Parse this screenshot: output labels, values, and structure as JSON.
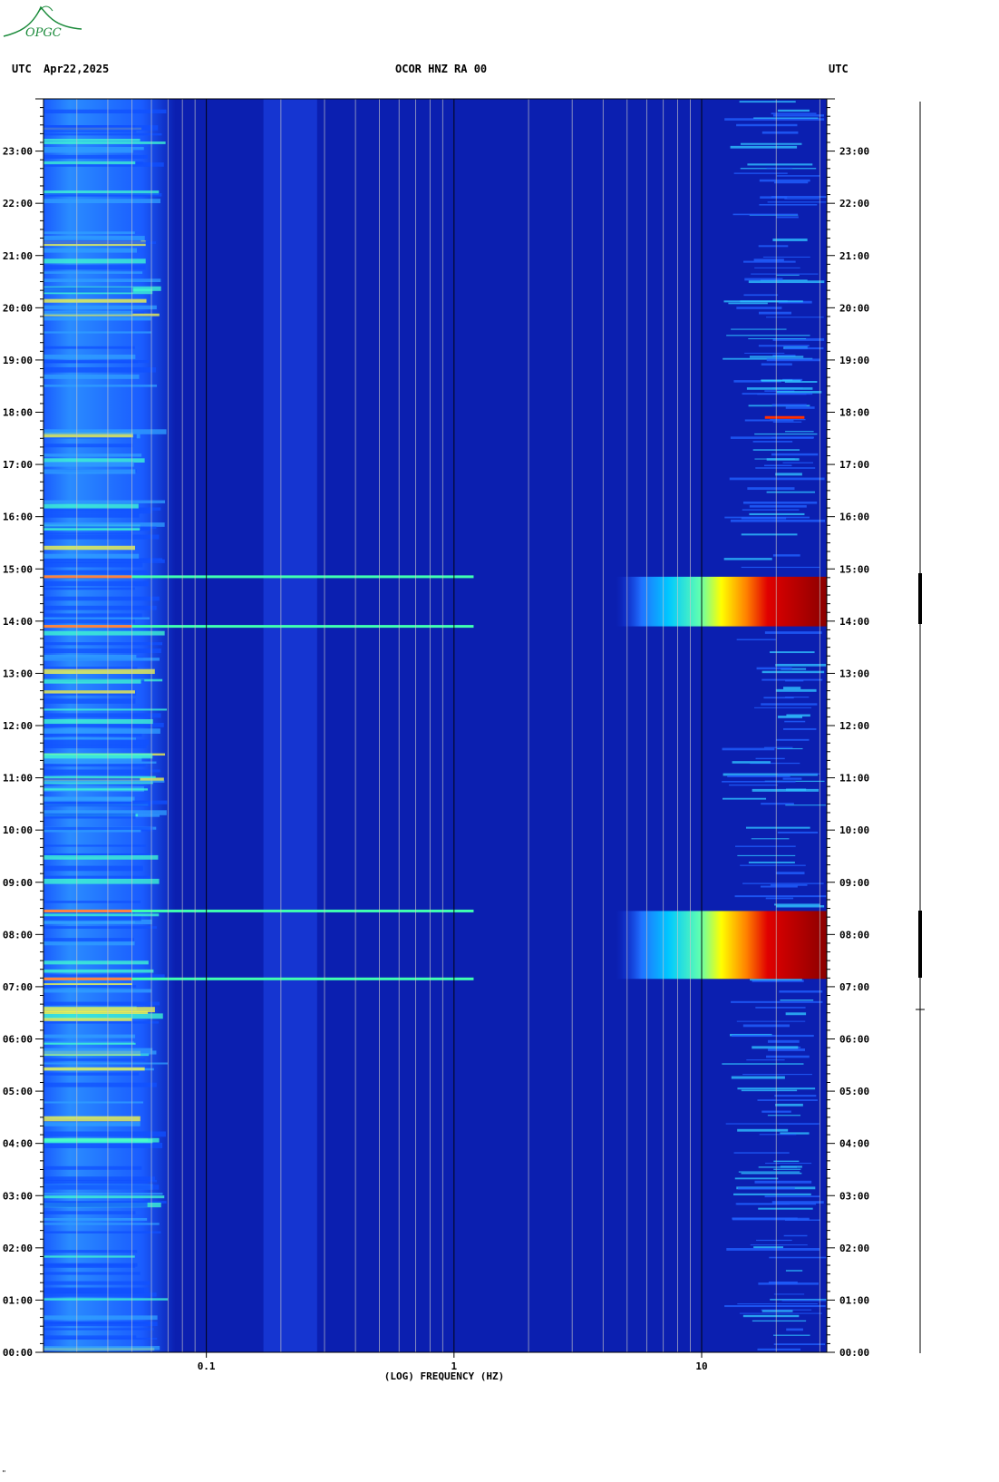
{
  "header": {
    "left_tz": "UTC",
    "date": "Apr22,2025",
    "station": "OCOR HNZ RA 00",
    "right_tz": "UTC"
  },
  "logo": {
    "text": "OPGC",
    "icon": "volcano-logo-icon",
    "color": "#1a8a3a"
  },
  "corner_mark": "\"",
  "chart_data": {
    "type": "heatmap",
    "title": "OCOR HNZ RA 00",
    "xlabel": "(LOG) FREQUENCY (HZ)",
    "ylabel": "",
    "x_scale": "log",
    "xlim": [
      0.022,
      32
    ],
    "x_ticks": [
      {
        "value": 0.1,
        "label": "0.1"
      },
      {
        "value": 1,
        "label": "1"
      },
      {
        "value": 10,
        "label": "10"
      }
    ],
    "ylim": [
      0,
      24
    ],
    "y_ticks": [
      {
        "hour": 0,
        "label": "00:00"
      },
      {
        "hour": 1,
        "label": "01:00"
      },
      {
        "hour": 2,
        "label": "02:00"
      },
      {
        "hour": 3,
        "label": "03:00"
      },
      {
        "hour": 4,
        "label": "04:00"
      },
      {
        "hour": 5,
        "label": "05:00"
      },
      {
        "hour": 6,
        "label": "06:00"
      },
      {
        "hour": 7,
        "label": "07:00"
      },
      {
        "hour": 8,
        "label": "08:00"
      },
      {
        "hour": 9,
        "label": "09:00"
      },
      {
        "hour": 10,
        "label": "10:00"
      },
      {
        "hour": 11,
        "label": "11:00"
      },
      {
        "hour": 12,
        "label": "12:00"
      },
      {
        "hour": 13,
        "label": "13:00"
      },
      {
        "hour": 14,
        "label": "14:00"
      },
      {
        "hour": 15,
        "label": "15:00"
      },
      {
        "hour": 16,
        "label": "16:00"
      },
      {
        "hour": 17,
        "label": "17:00"
      },
      {
        "hour": 18,
        "label": "18:00"
      },
      {
        "hour": 19,
        "label": "19:00"
      },
      {
        "hour": 20,
        "label": "20:00"
      },
      {
        "hour": 21,
        "label": "21:00"
      },
      {
        "hour": 22,
        "label": "22:00"
      },
      {
        "hour": 23,
        "label": "23:00"
      }
    ],
    "colormap": [
      "#00008b",
      "#0000ff",
      "#00a0ff",
      "#00ffff",
      "#ffff00",
      "#ff8000",
      "#ff0000",
      "#8b0000"
    ],
    "background_color": "#0b1fb0",
    "high_energy_bands": [
      {
        "start_hour": 13.9,
        "end_hour": 14.85,
        "f_start": 4.5,
        "peak": "dark red above 20 Hz"
      },
      {
        "start_hour": 7.15,
        "end_hour": 8.45,
        "f_start": 4.5,
        "peak": "dark red above 20 Hz"
      }
    ],
    "transient_lines_hours": [
      14.85,
      13.9,
      8.45,
      7.15,
      17.9
    ],
    "microseism_band_hz": [
      0.022,
      0.075
    ],
    "grid": true
  }
}
